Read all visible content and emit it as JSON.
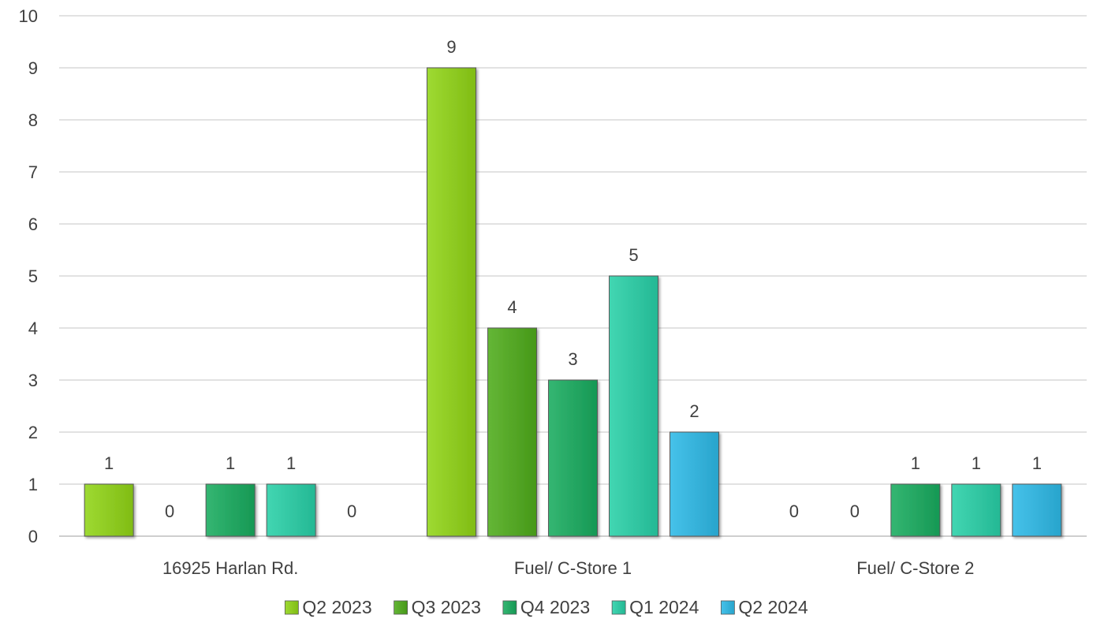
{
  "chart_data": {
    "type": "bar",
    "title": "",
    "xlabel": "",
    "ylabel": "",
    "categories": [
      "16925 Harlan Rd.",
      "Fuel/ C-Store 1",
      "Fuel/ C-Store 2"
    ],
    "series": [
      {
        "name": "Q2 2023",
        "color": "#8cc820",
        "values": [
          1,
          9,
          0
        ]
      },
      {
        "name": "Q3 2023",
        "color": "#52a424",
        "values": [
          0,
          4,
          0
        ]
      },
      {
        "name": "Q4 2023",
        "color": "#22a460",
        "values": [
          1,
          3,
          1
        ]
      },
      {
        "name": "Q1 2024",
        "color": "#30c4a0",
        "values": [
          1,
          5,
          1
        ]
      },
      {
        "name": "Q2 2024",
        "color": "#34b0d8",
        "values": [
          0,
          2,
          1
        ]
      }
    ],
    "ylim": [
      0,
      10
    ],
    "yticks": [
      0,
      1,
      2,
      3,
      4,
      5,
      6,
      7,
      8,
      9,
      10
    ],
    "grid": true,
    "legend": "bottom",
    "data_labels": true
  }
}
